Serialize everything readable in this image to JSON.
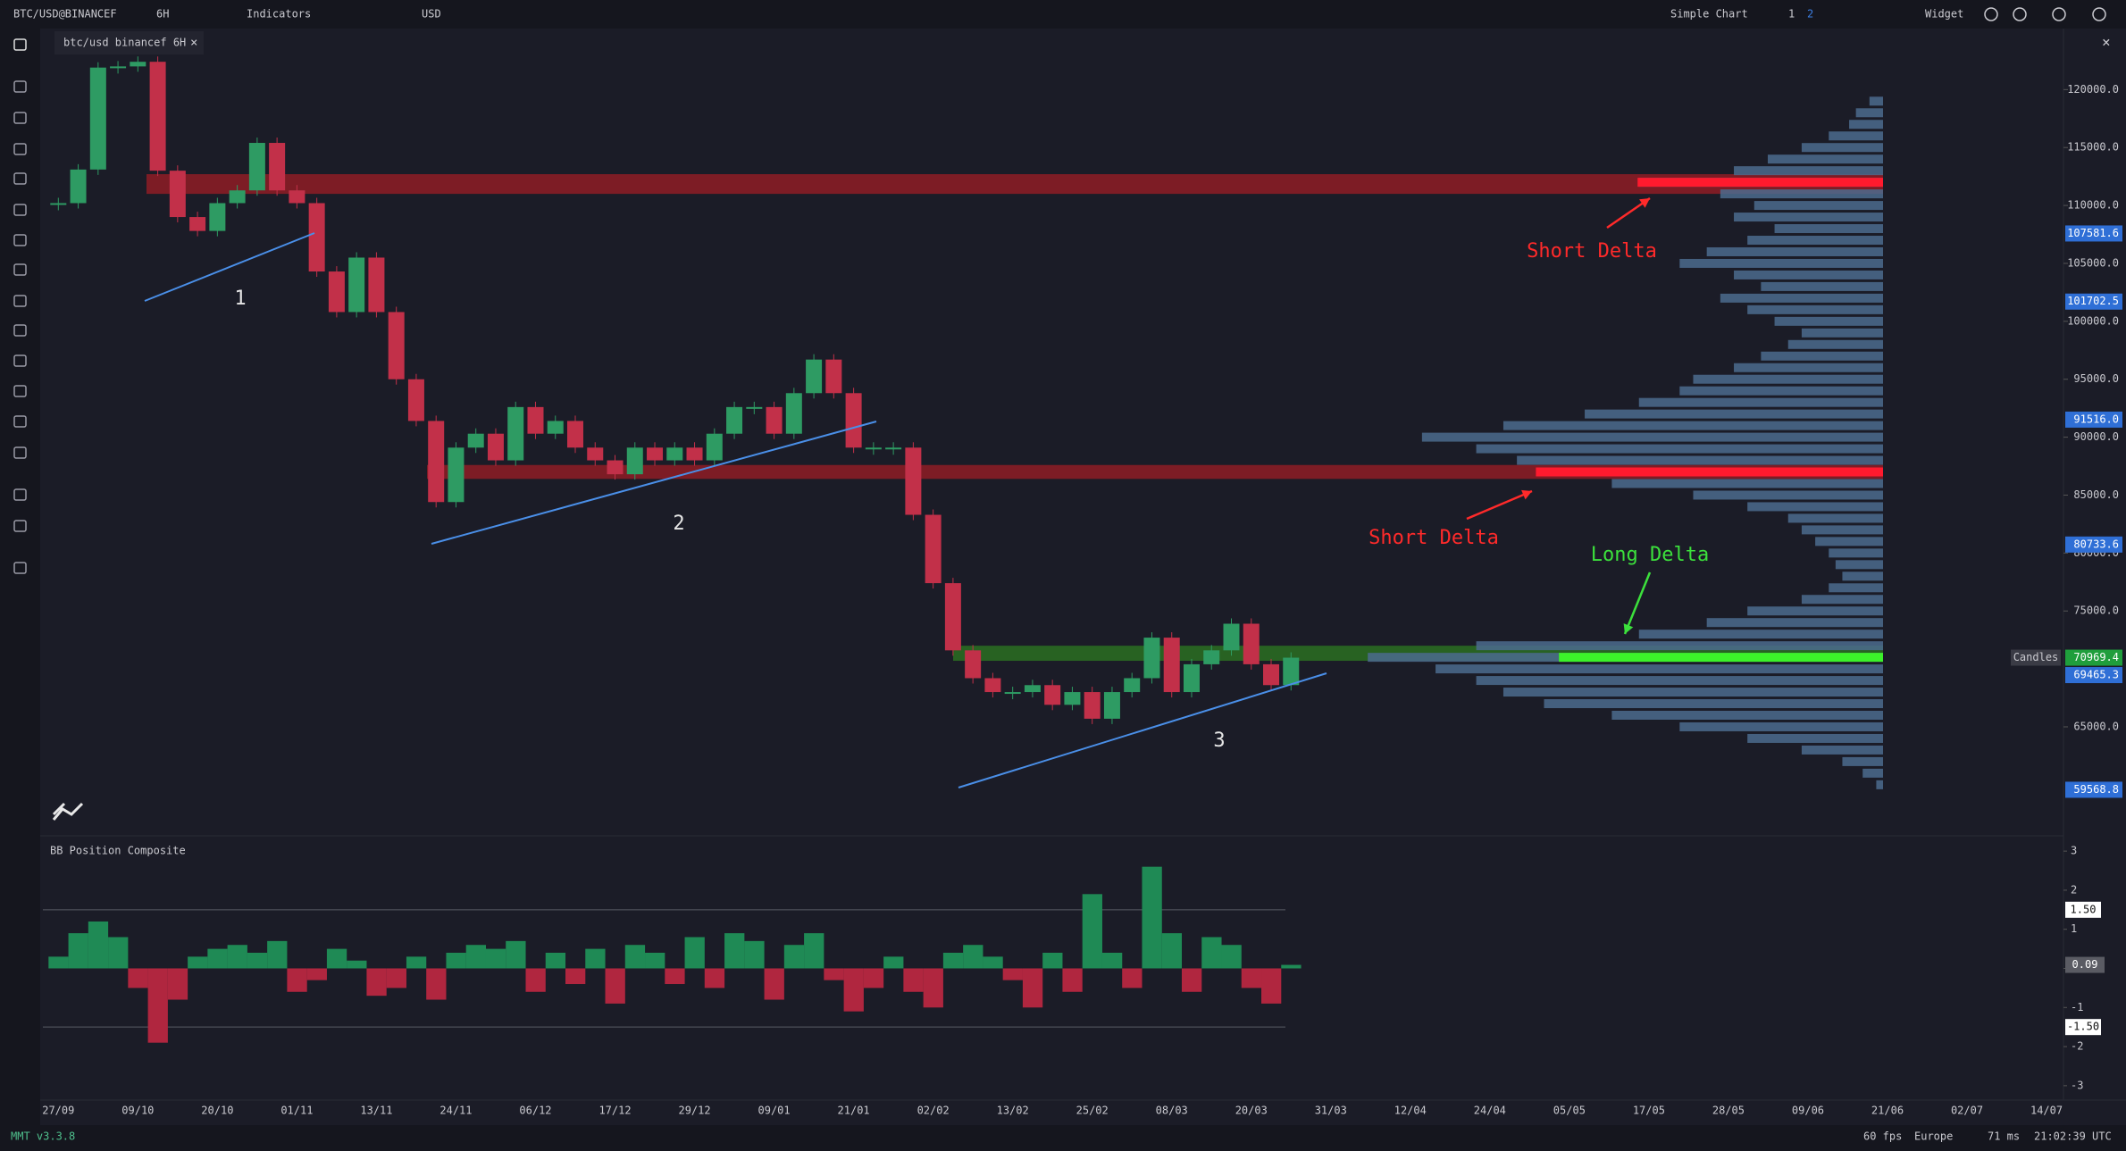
{
  "toolbar": {
    "symbol": "BTC/USD@BINANCEF",
    "timeframe": "6H",
    "indicators": "Indicators",
    "currency": "USD",
    "layout": "Simple Chart",
    "layout_1": "1",
    "layout_2": "2",
    "widget": "Widget"
  },
  "tab": {
    "title": "btc/usd binancef 6H"
  },
  "status_bar": {
    "version": "MMT v3.3.8",
    "fps": "60 fps",
    "region": "Europe",
    "latency": "71 ms",
    "clock": "21:02:39 UTC"
  },
  "chart_data": [
    {
      "type": "candle",
      "categories": [
        "27/09",
        null,
        null,
        null,
        "09/10",
        null,
        null,
        null,
        "20/10",
        null,
        null,
        null,
        "01/11",
        null,
        null,
        null,
        "13/11",
        null,
        null,
        null,
        "24/11",
        null,
        null,
        null,
        "06/12",
        null,
        null,
        null,
        "17/12",
        null,
        null,
        null,
        "29/12",
        null,
        null,
        null,
        "09/01",
        null,
        null,
        null,
        "21/01",
        null,
        null,
        null,
        "02/02",
        null,
        null,
        null,
        "13/02",
        null,
        null,
        null,
        "25/02",
        null,
        null,
        null,
        "08/03",
        null,
        null,
        null,
        "20/03",
        null,
        null
      ],
      "future_dates": [
        "31/03",
        "12/04",
        "24/04",
        "05/05",
        "17/05",
        "28/05",
        "09/06",
        "21/06",
        "02/07",
        "14/07"
      ],
      "values": [
        110200,
        113100,
        121900,
        122000,
        122400,
        113000,
        109000,
        107800,
        110200,
        111300,
        115400,
        111300,
        110200,
        104300,
        100800,
        105500,
        100800,
        95000,
        91400,
        84400,
        89100,
        90300,
        88000,
        92600,
        90300,
        91400,
        89100,
        88000,
        86800,
        89100,
        88000,
        89100,
        88000,
        90300,
        92600,
        92600,
        90300,
        93800,
        96700,
        93800,
        89100,
        89100,
        89100,
        83300,
        77400,
        71600,
        69200,
        68000,
        68000,
        68600,
        66900,
        68000,
        65700,
        68000,
        69200,
        72700,
        68000,
        70400,
        71600,
        73900,
        70400,
        68600,
        70969.4
      ],
      "up_color": "#2e9b63",
      "down_color": "#c23049",
      "ylim": [
        55750,
        122800
      ],
      "yticks": [
        {
          "value": 120000,
          "label": "120000.0"
        },
        {
          "value": 115000,
          "label": "115000.0"
        },
        {
          "value": 110000,
          "label": "110000.0"
        },
        {
          "value": 105000,
          "label": "105000.0"
        },
        {
          "value": 100000,
          "label": "100000.0"
        },
        {
          "value": 95000,
          "label": "95000.0"
        },
        {
          "value": 90000,
          "label": "90000.0"
        },
        {
          "value": 85000,
          "label": "85000.0"
        },
        {
          "value": 80000,
          "label": "80000.0"
        },
        {
          "value": 75000,
          "label": "75000.0"
        },
        {
          "value": 65000,
          "label": "65000.0"
        }
      ],
      "price_tags": [
        {
          "value": 107581.6,
          "color": "#2f6fd6"
        },
        {
          "value": 101702.5,
          "color": "#2f6fd6"
        },
        {
          "value": 91516,
          "label": "91516.0",
          "color": "#2f6fd6"
        },
        {
          "value": 80733.6,
          "color": "#2f6fd6"
        },
        {
          "value": 69465.3,
          "color": "#2f6fd6"
        },
        {
          "value": 59568.8,
          "color": "#2f6fd6"
        }
      ],
      "last_price_color": "#1f9e3c",
      "last_price_name": "Candles",
      "zones": [
        {
          "low": 111000,
          "high": 112700,
          "color": "#8e1c26"
        },
        {
          "low": 86400,
          "high": 87600,
          "color": "#8e1c26"
        },
        {
          "low": 70700,
          "high": 72000,
          "color": "#2a6e22"
        }
      ],
      "volume_profile": {
        "color": "#4b6b8e",
        "levels": [
          119000,
          118000,
          117000,
          116000,
          115000,
          114000,
          113000,
          112000,
          111000,
          110000,
          109000,
          108000,
          107000,
          106000,
          105000,
          104000,
          103000,
          102000,
          101000,
          100000,
          99000,
          98000,
          97000,
          96000,
          95000,
          94000,
          93000,
          92000,
          91000,
          90000,
          89000,
          88000,
          87000,
          86000,
          85000,
          84000,
          83000,
          82000,
          81000,
          80000,
          79000,
          78000,
          77000,
          76000,
          75000,
          74000,
          73000,
          72000,
          71000,
          70000,
          69000,
          68000,
          67000,
          66000,
          65000,
          64000,
          63000,
          62000,
          61000,
          60000
        ],
        "volumes": [
          10,
          20,
          25,
          40,
          60,
          85,
          110,
          180,
          120,
          95,
          110,
          80,
          100,
          130,
          150,
          110,
          90,
          120,
          100,
          80,
          60,
          70,
          90,
          110,
          140,
          150,
          180,
          220,
          280,
          340,
          300,
          270,
          255,
          200,
          140,
          100,
          70,
          60,
          50,
          40,
          35,
          30,
          40,
          60,
          100,
          130,
          180,
          300,
          380,
          330,
          300,
          280,
          250,
          200,
          150,
          100,
          60,
          30,
          15,
          5
        ]
      },
      "delta_bars": {
        "levels": [
          112000,
          87000,
          71000
        ],
        "volumes": [
          181,
          256,
          239
        ],
        "colors": [
          "#ff1a2e",
          "#ff1a2e",
          "#3cf22a"
        ]
      },
      "annotations": [
        {
          "text": "1",
          "color": "#e6e6e6"
        },
        {
          "text": "2",
          "color": "#e6e6e6"
        },
        {
          "text": "3",
          "color": "#e6e6e6"
        },
        {
          "text": "Short Delta",
          "color": "#ff2a2a"
        },
        {
          "text": "Short Delta",
          "color": "#ff2a2a"
        },
        {
          "text": "Long Delta",
          "color": "#3ce03c"
        }
      ]
    },
    {
      "type": "bar",
      "title": "BB Position Composite",
      "values": [
        0.3,
        0.9,
        1.2,
        0.8,
        -0.5,
        -1.9,
        -0.8,
        0.3,
        0.5,
        0.6,
        0.4,
        0.7,
        -0.6,
        -0.3,
        0.5,
        0.2,
        -0.7,
        -0.5,
        0.3,
        -0.8,
        0.4,
        0.6,
        0.5,
        0.7,
        -0.6,
        0.4,
        -0.4,
        0.5,
        -0.9,
        0.6,
        0.4,
        -0.4,
        0.8,
        -0.5,
        0.9,
        0.7,
        -0.8,
        0.6,
        0.9,
        -0.3,
        -1.1,
        -0.5,
        0.3,
        -0.6,
        -1.0,
        0.4,
        0.6,
        0.3,
        -0.3,
        -1.0,
        0.4,
        -0.6,
        1.9,
        0.4,
        -0.5,
        2.6,
        0.9,
        -0.6,
        0.8,
        0.6,
        -0.5,
        -0.9,
        0.09
      ],
      "up_color": "#1f8a55",
      "down_color": "#b0263f",
      "ylim": [
        -3.3,
        3.3
      ],
      "yticks": [
        3,
        2,
        1,
        0,
        -1,
        -2,
        -3
      ],
      "bands": [
        {
          "value": 1.5,
          "label": "1.50"
        },
        {
          "value": -1.5,
          "label": "-1.50"
        }
      ]
    }
  ]
}
